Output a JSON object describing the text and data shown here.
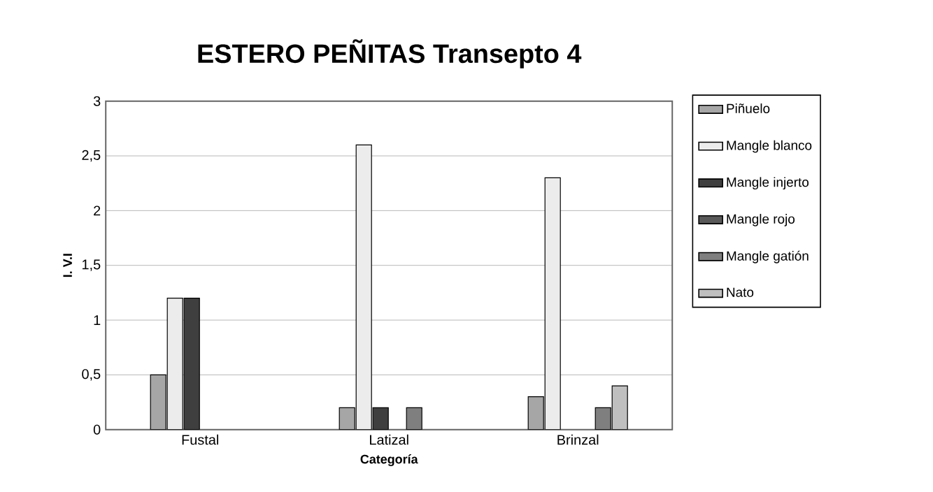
{
  "chart_data": {
    "type": "bar",
    "title": "ESTERO PEÑITAS Transepto 4",
    "xlabel": "Categoría",
    "ylabel": "I. V.I",
    "categories": [
      "Fustal",
      "Latizal",
      "Brinzal"
    ],
    "series": [
      {
        "name": "Piñuelo",
        "color": "#a6a6a6",
        "values": [
          0.5,
          0.2,
          0.3
        ]
      },
      {
        "name": "Mangle blanco",
        "color": "#ececec",
        "values": [
          1.2,
          2.6,
          2.3
        ]
      },
      {
        "name": "Mangle injerto",
        "color": "#3f3f3f",
        "values": [
          1.2,
          0.2,
          null
        ]
      },
      {
        "name": "Mangle rojo",
        "color": "#595959",
        "values": [
          null,
          null,
          null
        ]
      },
      {
        "name": "Mangle gatión",
        "color": "#7f7f7f",
        "values": [
          null,
          0.2,
          0.2
        ]
      },
      {
        "name": "Nato",
        "color": "#bfbfbf",
        "values": [
          null,
          null,
          0.4
        ]
      }
    ],
    "ylim": [
      0,
      3
    ],
    "yticks": [
      0,
      {
        "value": 0.5,
        "label": "0,5"
      },
      1,
      {
        "value": 1.5,
        "label": "1,5"
      },
      2,
      {
        "value": 2.5,
        "label": "2,5"
      },
      3
    ],
    "grid": "y",
    "legend": "right"
  }
}
